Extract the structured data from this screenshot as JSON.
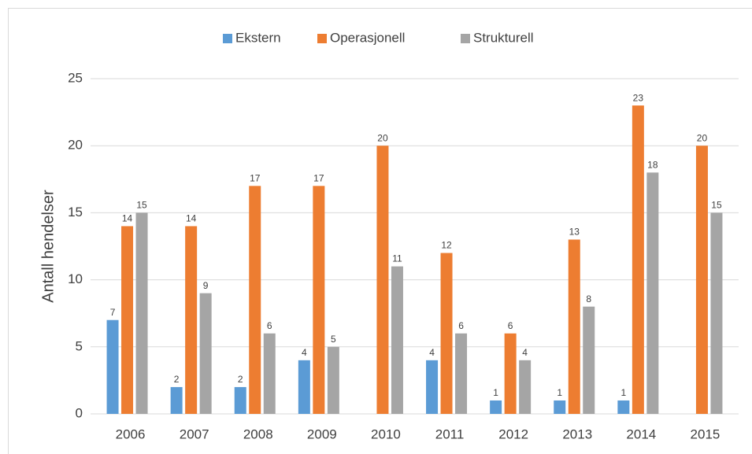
{
  "chart_data": {
    "type": "bar",
    "y_label": "Antall hendelser",
    "categories": [
      "2006",
      "2007",
      "2008",
      "2009",
      "2010",
      "2011",
      "2012",
      "2013",
      "2014",
      "2015"
    ],
    "series": [
      {
        "name": "Ekstern",
        "color": "#5b9bd5",
        "values": [
          7,
          2,
          2,
          4,
          null,
          4,
          1,
          1,
          1,
          null
        ]
      },
      {
        "name": "Operasjonell",
        "color": "#ed7d31",
        "values": [
          14,
          14,
          17,
          17,
          20,
          12,
          6,
          13,
          23,
          20
        ]
      },
      {
        "name": "Strukturell",
        "color": "#a5a5a5",
        "values": [
          15,
          9,
          6,
          5,
          11,
          6,
          4,
          8,
          18,
          15
        ]
      }
    ],
    "ylim": [
      0,
      25
    ],
    "yticks": [
      0,
      5,
      10,
      15,
      20,
      25
    ],
    "grid": true,
    "legend": "top"
  }
}
